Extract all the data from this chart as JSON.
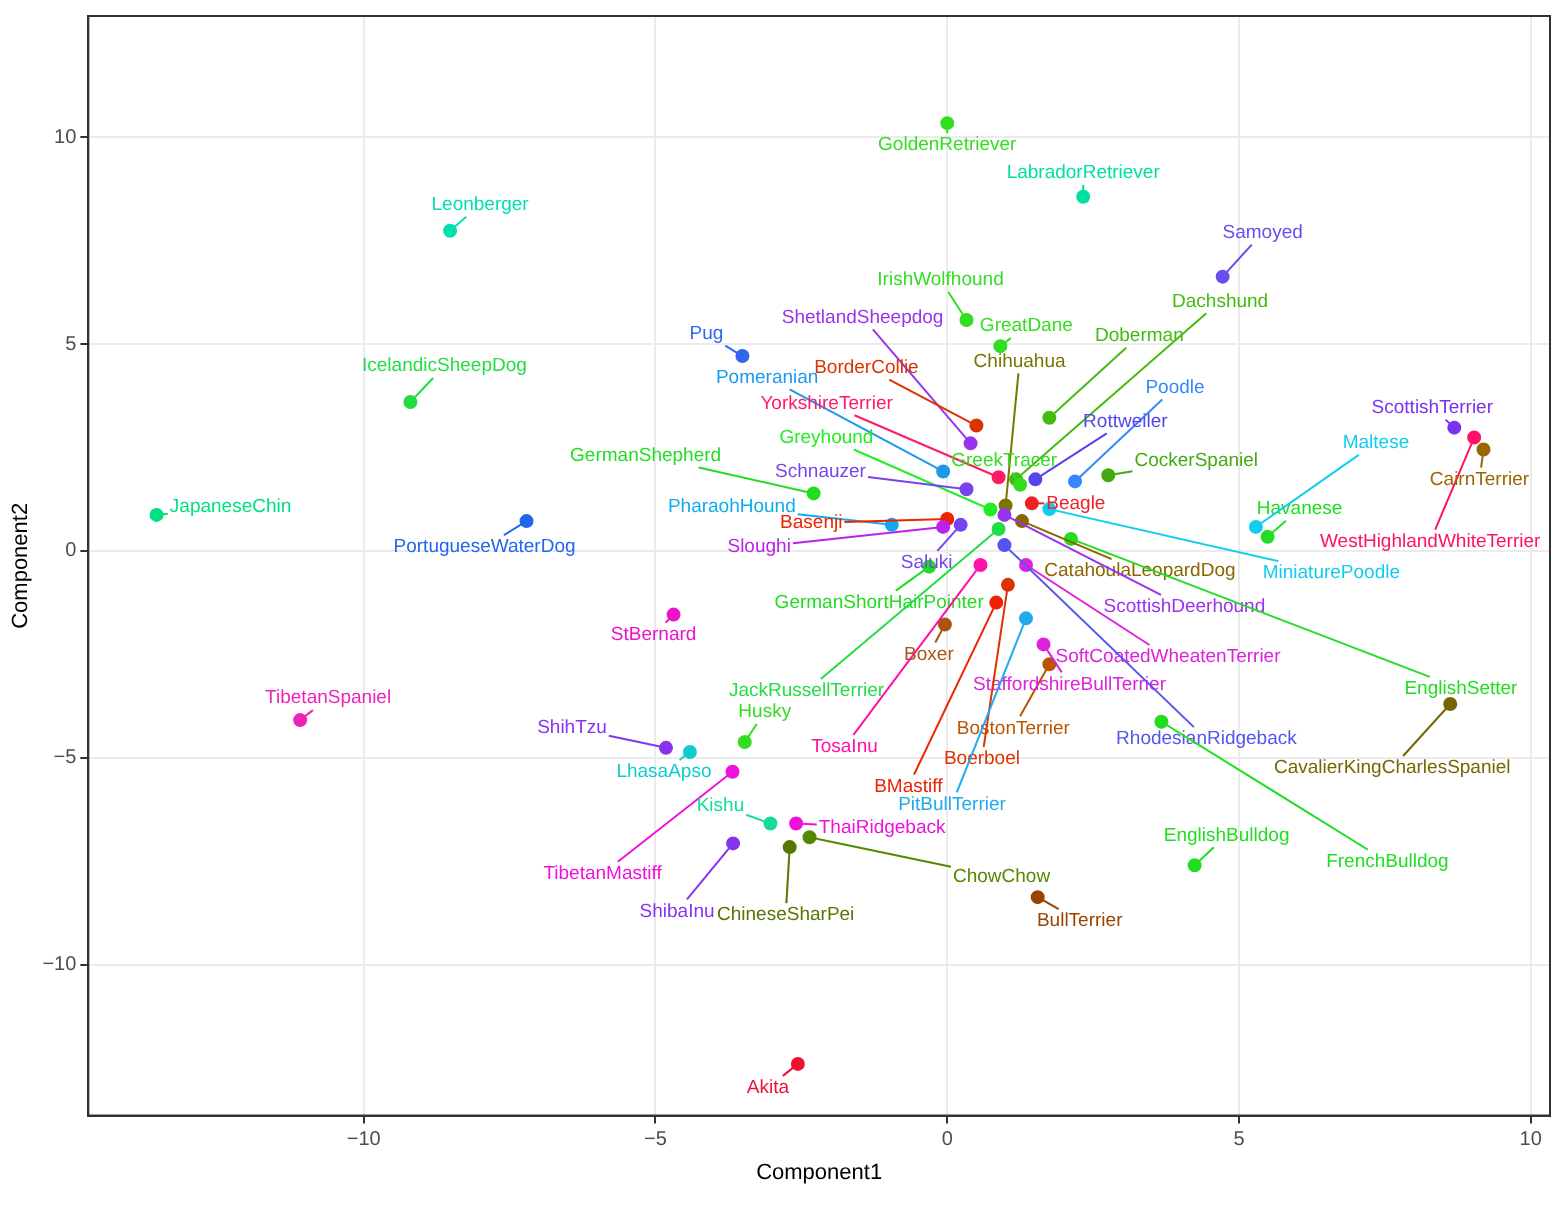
{
  "chart_data": {
    "type": "scatter",
    "xlabel": "Component1",
    "ylabel": "Component2",
    "xlim": [
      -14.72,
      10.33
    ],
    "ylim": [
      -13.65,
      12.93
    ],
    "xticks": [
      -10,
      -5,
      0,
      5,
      10
    ],
    "yticks": [
      -10,
      -5,
      0,
      5,
      10
    ],
    "grid": true,
    "marker": "circle",
    "x": [
      0.0,
      2.33,
      -8.52,
      4.72,
      0.33,
      0.91,
      0.4,
      -3.51,
      1.18,
      1.75,
      -9.2,
      -13.55,
      -7.21,
      -0.07,
      0.88,
      0.5,
      1.0,
      2.19,
      1.51,
      2.76,
      1.25,
      1.45,
      0.74,
      -2.29,
      0.33,
      -0.95,
      0.0,
      -0.07,
      0.23,
      -0.31,
      1.28,
      1.75,
      0.98,
      1.35,
      2.12,
      5.49,
      5.29,
      8.69,
      9.03,
      9.19,
      -4.69,
      -0.04,
      0.88,
      0.57,
      -3.47,
      1.75,
      1.65,
      0.98,
      1.04,
      0.84,
      1.35,
      -4.82,
      -4.41,
      -11.09,
      -3.68,
      -3.03,
      -2.59,
      -3.67,
      -2.7,
      -2.36,
      1.55,
      8.62,
      4.24,
      3.67,
      -2.56
    ],
    "values": [
      10.34,
      8.56,
      7.74,
      6.63,
      5.58,
      4.95,
      2.6,
      4.71,
      1.73,
      3.22,
      3.6,
      0.87,
      0.72,
      1.92,
      1.78,
      3.03,
      1.1,
      1.68,
      1.73,
      1.83,
      1.6,
      1.15,
      1.0,
      1.39,
      1.49,
      0.63,
      0.77,
      0.58,
      0.63,
      -0.38,
      0.72,
      1.01,
      0.87,
      -0.34,
      0.29,
      0.34,
      0.58,
      2.98,
      2.74,
      2.45,
      -1.54,
      -1.78,
      0.53,
      -0.34,
      -4.62,
      -2.74,
      -2.26,
      0.14,
      -0.82,
      -1.25,
      -1.63,
      -4.76,
      -4.86,
      -4.09,
      -5.34,
      -6.59,
      -6.59,
      -7.07,
      -7.16,
      -6.92,
      -8.37,
      -3.7,
      -7.6,
      -4.13,
      -12.4
    ],
    "colors": [
      "#33dd22",
      "#00e0a0",
      "#00e0b0",
      "#6a4cf0",
      "#33dd22",
      "#33dd22",
      "#9a33f0",
      "#3366ee",
      "#44bb11",
      "#44bb11",
      "#22dd44",
      "#00e080",
      "#2266ee",
      "#1a99ee",
      "#ff1a66",
      "#dd3300",
      "#777700",
      "#3388ff",
      "#5544ee",
      "#44aa11",
      "#33dd22",
      "#ee2222",
      "#22ee22",
      "#22dd22",
      "#7744ee",
      "#11aaee",
      "#ee2200",
      "#bb22ee",
      "#7744ee",
      "#22dd22",
      "#886600",
      "#11ccee",
      "#9933ee",
      "#dd22dd",
      "#22dd22",
      "#22dd22",
      "#11ccee",
      "#7733ee",
      "#ff1166",
      "#996600",
      "#ee11cc",
      "#aa5511",
      "#22dd44",
      "#ff11aa",
      "#33dd22",
      "#bb5500",
      "#dd22dd",
      "#5555ee",
      "#dd3300",
      "#ee2200",
      "#22aaee",
      "#8833ee",
      "#11cccc",
      "#ee22bb",
      "#ee11dd",
      "#11dd99",
      "#ee11dd",
      "#8833ee",
      "#557700",
      "#558800",
      "#994400",
      "#776600",
      "#22dd22",
      "#22dd22",
      "#ee1133"
    ],
    "annotations": [
      {
        "text": "GoldenRetriever",
        "x": 0.0,
        "y": 10.34
      },
      {
        "text": "LabradorRetriever",
        "x": 2.33,
        "y": 8.56
      },
      {
        "text": "Leonberger",
        "x": -8.52,
        "y": 7.74
      },
      {
        "text": "Samoyed",
        "x": 4.72,
        "y": 6.63
      },
      {
        "text": "IrishWolfhound",
        "x": 0.33,
        "y": 5.58
      },
      {
        "text": "GreatDane",
        "x": 0.91,
        "y": 4.95
      },
      {
        "text": "ShetlandSheepdog",
        "x": 0.4,
        "y": 2.6
      },
      {
        "text": "Pug",
        "x": -3.51,
        "y": 4.71
      },
      {
        "text": "Dachshund",
        "x": 1.18,
        "y": 1.73
      },
      {
        "text": "Doberman",
        "x": 1.75,
        "y": 3.22
      },
      {
        "text": "IcelandicSheepDog",
        "x": -9.2,
        "y": 3.6
      },
      {
        "text": "JapaneseChin",
        "x": -13.55,
        "y": 0.87
      },
      {
        "text": "PortugueseWaterDog",
        "x": -7.21,
        "y": 0.72
      },
      {
        "text": "Pomeranian",
        "x": -0.07,
        "y": 1.92
      },
      {
        "text": "YorkshireTerrier",
        "x": 0.88,
        "y": 1.78
      },
      {
        "text": "BorderCollie",
        "x": 0.5,
        "y": 3.03
      },
      {
        "text": "Chihuahua",
        "x": 1.0,
        "y": 1.1
      },
      {
        "text": "Poodle",
        "x": 2.19,
        "y": 1.68
      },
      {
        "text": "Rottweiler",
        "x": 1.51,
        "y": 1.73
      },
      {
        "text": "CockerSpaniel",
        "x": 2.76,
        "y": 1.83
      },
      {
        "text": "GreekTracer",
        "x": 1.25,
        "y": 1.6
      },
      {
        "text": "Beagle",
        "x": 1.45,
        "y": 1.15
      },
      {
        "text": "Greyhound",
        "x": 0.74,
        "y": 1.0
      },
      {
        "text": "GermanShepherd",
        "x": -2.29,
        "y": 1.39
      },
      {
        "text": "Schnauzer",
        "x": 0.33,
        "y": 1.49
      },
      {
        "text": "PharaohHound",
        "x": -0.95,
        "y": 0.63
      },
      {
        "text": "Basenji",
        "x": 0.0,
        "y": 0.77
      },
      {
        "text": "Sloughi",
        "x": -0.07,
        "y": 0.58
      },
      {
        "text": "Saluki",
        "x": 0.23,
        "y": 0.63
      },
      {
        "text": "GermanShortHairPointer",
        "x": -0.31,
        "y": -0.38
      },
      {
        "text": "CatahoulaLeopardDog",
        "x": 1.28,
        "y": 0.72
      },
      {
        "text": "MiniaturePoodle",
        "x": 1.75,
        "y": 1.01
      },
      {
        "text": "ScottishDeerhound",
        "x": 0.98,
        "y": 0.87
      },
      {
        "text": "SoftCoatedWheatenTerrier",
        "x": 1.35,
        "y": -0.34
      },
      {
        "text": "EnglishSetter",
        "x": 2.12,
        "y": 0.29
      },
      {
        "text": "Havanese",
        "x": 5.49,
        "y": 0.34
      },
      {
        "text": "Maltese",
        "x": 5.29,
        "y": 0.58
      },
      {
        "text": "ScottishTerrier",
        "x": 8.69,
        "y": 2.98
      },
      {
        "text": "WestHighlandWhiteTerrier",
        "x": 9.03,
        "y": 2.74
      },
      {
        "text": "CairnTerrier",
        "x": 9.19,
        "y": 2.45
      },
      {
        "text": "StBernard",
        "x": -4.69,
        "y": -1.54
      },
      {
        "text": "Boxer",
        "x": -0.04,
        "y": -1.78
      },
      {
        "text": "JackRussellTerrier",
        "x": 0.88,
        "y": 0.53
      },
      {
        "text": "TosaInu",
        "x": 0.57,
        "y": -0.34
      },
      {
        "text": "Husky",
        "x": -3.47,
        "y": -4.62
      },
      {
        "text": "BostonTerrier",
        "x": 1.75,
        "y": -2.74
      },
      {
        "text": "StaffordshireBullTerrier",
        "x": 1.65,
        "y": -2.26
      },
      {
        "text": "RhodesianRidgeback",
        "x": 0.98,
        "y": 0.14
      },
      {
        "text": "Boerboel",
        "x": 1.04,
        "y": -0.82
      },
      {
        "text": "BMastiff",
        "x": 0.84,
        "y": -1.25
      },
      {
        "text": "PitBullTerrier",
        "x": 1.35,
        "y": -1.63
      },
      {
        "text": "ShihTzu",
        "x": -4.82,
        "y": -4.76
      },
      {
        "text": "LhasaApso",
        "x": -4.41,
        "y": -4.86
      },
      {
        "text": "TibetanSpaniel",
        "x": -11.09,
        "y": -4.09
      },
      {
        "text": "TibetanMastiff",
        "x": -3.68,
        "y": -5.34
      },
      {
        "text": "Kishu",
        "x": -3.03,
        "y": -6.59
      },
      {
        "text": "ThaiRidgeback",
        "x": -2.59,
        "y": -6.59
      },
      {
        "text": "ShibaInu",
        "x": -3.67,
        "y": -7.07
      },
      {
        "text": "ChineseSharPei",
        "x": -2.7,
        "y": -7.16
      },
      {
        "text": "ChowChow",
        "x": -2.36,
        "y": -6.92
      },
      {
        "text": "BullTerrier",
        "x": 1.55,
        "y": -8.37
      },
      {
        "text": "CavalierKingCharlesSpaniel",
        "x": 8.62,
        "y": -3.7
      },
      {
        "text": "EnglishBulldog",
        "x": 4.24,
        "y": -7.6
      },
      {
        "text": "FrenchBulldog",
        "x": 3.67,
        "y": -4.13
      },
      {
        "text": "Akita",
        "x": -2.56,
        "y": -12.4
      }
    ]
  }
}
